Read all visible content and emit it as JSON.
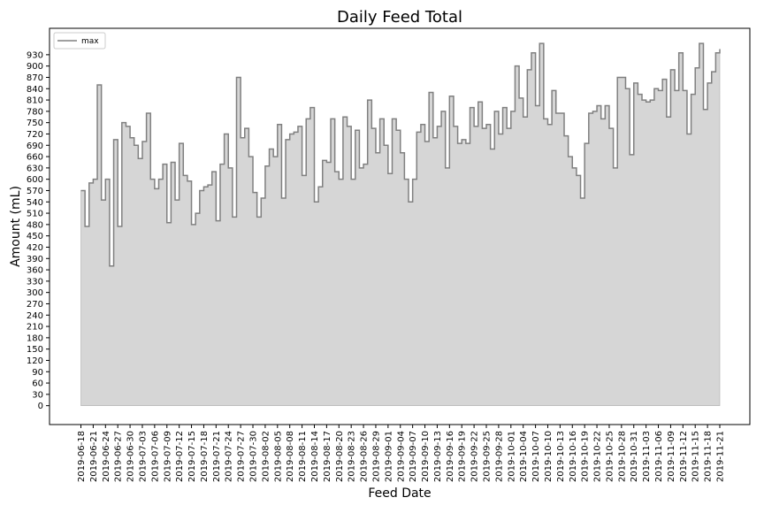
{
  "chart_data": {
    "type": "area",
    "title": "Daily Feed Total",
    "xlabel": "Feed Date",
    "ylabel": "Amount (mL)",
    "ylim": [
      -50,
      1000
    ],
    "y_ticks": [
      0,
      30,
      60,
      90,
      120,
      150,
      180,
      210,
      240,
      270,
      300,
      330,
      360,
      390,
      420,
      450,
      480,
      510,
      540,
      570,
      600,
      630,
      660,
      690,
      720,
      750,
      780,
      810,
      840,
      870,
      900,
      930
    ],
    "x_tick_labels": [
      "2019-06-18",
      "2019-06-21",
      "2019-06-24",
      "2019-06-27",
      "2019-06-30",
      "2019-07-03",
      "2019-07-06",
      "2019-07-09",
      "2019-07-12",
      "2019-07-15",
      "2019-07-18",
      "2019-07-21",
      "2019-07-24",
      "2019-07-27",
      "2019-07-30",
      "2019-08-02",
      "2019-08-05",
      "2019-08-08",
      "2019-08-11",
      "2019-08-14",
      "2019-08-17",
      "2019-08-20",
      "2019-08-23",
      "2019-08-26",
      "2019-08-29",
      "2019-09-01",
      "2019-09-04",
      "2019-09-07",
      "2019-09-10",
      "2019-09-13",
      "2019-09-16",
      "2019-09-19",
      "2019-09-22",
      "2019-09-25",
      "2019-09-28",
      "2019-10-01",
      "2019-10-04",
      "2019-10-07",
      "2019-10-10",
      "2019-10-13",
      "2019-10-16",
      "2019-10-19",
      "2019-10-22",
      "2019-10-25",
      "2019-10-28",
      "2019-10-31",
      "2019-11-03",
      "2019-11-06",
      "2019-11-09",
      "2019-11-12",
      "2019-11-15",
      "2019-11-18",
      "2019-11-21"
    ],
    "start_date": "2019-06-18",
    "end_date": "2019-11-21",
    "grid": false,
    "legend_position": "top-left",
    "series": [
      {
        "name": "max",
        "values": [
          570,
          475,
          590,
          600,
          850,
          545,
          600,
          370,
          705,
          475,
          750,
          740,
          710,
          690,
          655,
          700,
          775,
          600,
          575,
          600,
          640,
          485,
          645,
          545,
          695,
          610,
          595,
          480,
          510,
          570,
          580,
          585,
          620,
          490,
          640,
          720,
          630,
          500,
          870,
          710,
          735,
          660,
          565,
          500,
          550,
          635,
          680,
          660,
          745,
          550,
          705,
          720,
          725,
          740,
          610,
          760,
          790,
          540,
          580,
          650,
          645,
          760,
          620,
          600,
          765,
          740,
          600,
          730,
          630,
          640,
          810,
          735,
          670,
          760,
          690,
          615,
          760,
          730,
          670,
          600,
          540,
          600,
          725,
          745,
          700,
          830,
          710,
          740,
          780,
          630,
          820,
          740,
          695,
          705,
          695,
          790,
          740,
          805,
          735,
          745,
          680,
          780,
          720,
          790,
          735,
          780,
          900,
          815,
          765,
          890,
          935,
          795,
          960,
          760,
          745,
          835,
          775,
          775,
          715,
          660,
          630,
          610,
          550,
          695,
          775,
          780,
          795,
          760,
          795,
          735,
          630,
          870,
          870,
          840,
          665,
          855,
          825,
          810,
          805,
          810,
          840,
          835,
          865,
          765,
          890,
          835,
          935,
          835,
          720,
          825,
          895,
          960,
          785,
          855,
          885,
          935,
          945
        ],
        "color": "#808080",
        "fill_color": "#d6d6d6"
      }
    ]
  }
}
